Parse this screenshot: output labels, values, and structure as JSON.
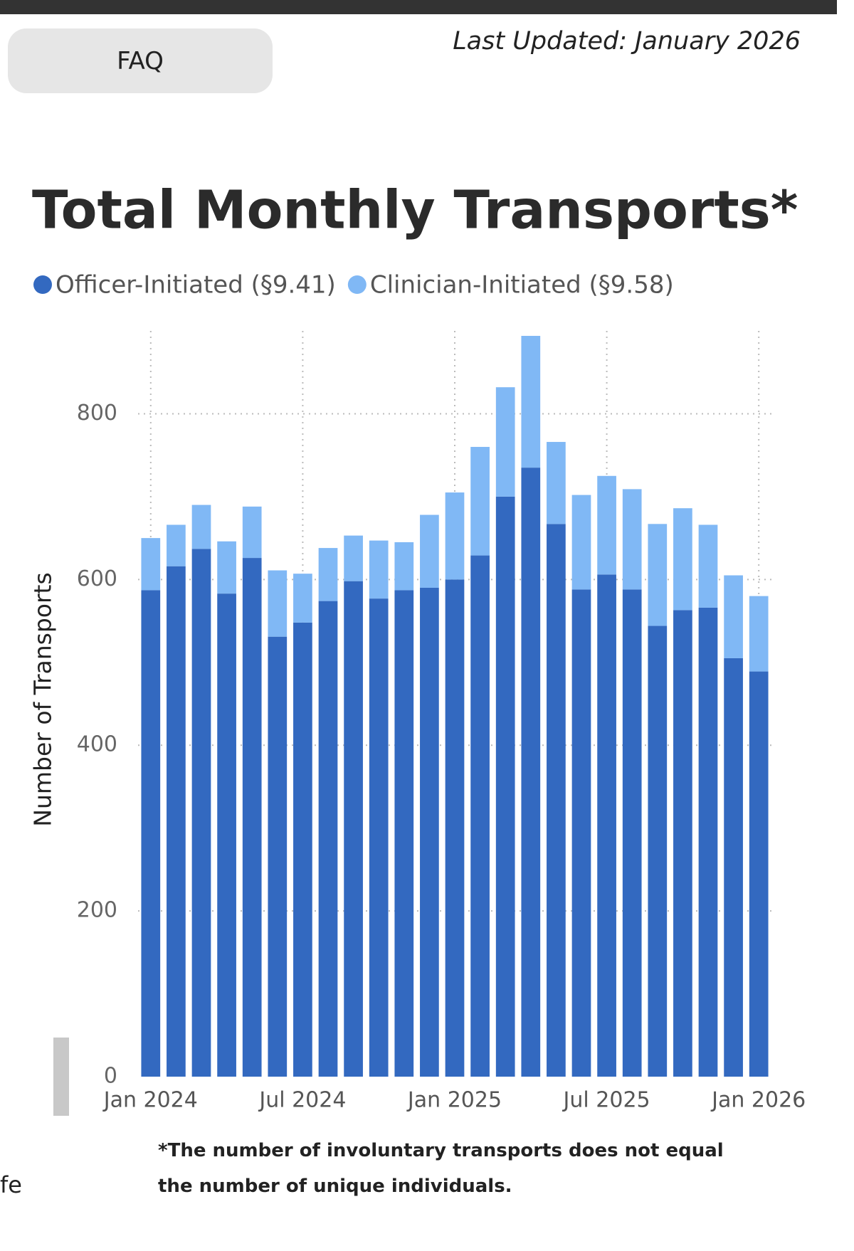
{
  "faq_button": "FAQ",
  "last_updated": "Last Updated: January 2026",
  "cut_text": "fe",
  "chart_data": {
    "type": "stacked_bar",
    "title": "Total Monthly Transports*",
    "y_label": "Number of Transports",
    "footnote": "*The number of involuntary transports does not equal the number of unique individuals.",
    "categories": [
      "Jan 2024",
      null,
      null,
      null,
      null,
      null,
      "Jul 2024",
      null,
      null,
      null,
      null,
      null,
      "Jan 2025",
      null,
      null,
      null,
      null,
      null,
      "Jul 2025",
      null,
      null,
      null,
      null,
      null,
      "Jan 2026"
    ],
    "series": [
      {
        "name": "Officer-Initiated (§9.41)",
        "color": "#3369c0",
        "values": [
          587,
          616,
          637,
          583,
          626,
          531,
          548,
          574,
          598,
          577,
          587,
          590,
          600,
          629,
          700,
          735,
          667,
          588,
          606,
          588,
          544,
          563,
          566,
          505,
          489
        ]
      },
      {
        "name": "Clinician-Initiated (§9.58)",
        "color": "#80b8f5",
        "values": [
          63,
          50,
          53,
          63,
          62,
          80,
          59,
          64,
          55,
          70,
          58,
          88,
          105,
          131,
          132,
          159,
          99,
          114,
          119,
          121,
          123,
          123,
          100,
          100,
          91
        ]
      }
    ],
    "ylim": [
      0,
      900
    ],
    "yticks": [
      0,
      200,
      400,
      600,
      800
    ],
    "grid": true,
    "legend": "top-left"
  }
}
